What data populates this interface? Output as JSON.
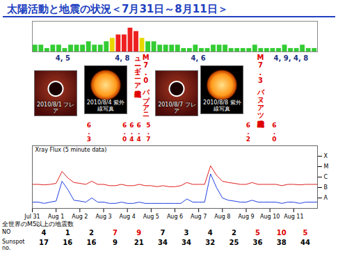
{
  "title": "太陽活動と地震の状況＜7月31日～8月11日＞",
  "chart_data": [
    {
      "type": "bar",
      "x": [
        0.125,
        0.375,
        0.625,
        0.875,
        1.125,
        1.375,
        1.625,
        1.875,
        2.125,
        2.375,
        2.625,
        2.875,
        3.125,
        3.375,
        3.625,
        3.875,
        4.125,
        4.375,
        4.625,
        4.875,
        5.125,
        5.375,
        5.625,
        5.875,
        6.125,
        6.375,
        6.625,
        6.875,
        7.125,
        7.375,
        7.625,
        7.875,
        8.125,
        8.375,
        8.625,
        8.875,
        9.125,
        9.375,
        9.625,
        9.875,
        10.125,
        10.375,
        10.625,
        10.875,
        11.125,
        11.375,
        11.625,
        11.875
      ],
      "values": [
        2,
        2,
        1,
        2,
        2,
        1,
        2,
        2,
        2,
        3,
        2,
        2,
        3,
        4,
        5,
        5,
        7,
        6,
        4,
        3,
        3,
        2,
        2,
        2,
        2,
        1,
        1,
        2,
        1,
        1,
        2,
        2,
        2,
        1,
        1,
        1,
        1,
        2,
        1,
        1,
        1,
        1,
        2,
        1,
        1,
        2,
        1,
        1
      ],
      "colors": [
        "#33cc33",
        "#33cc33",
        "#33cc33",
        "#33cc33",
        "#33cc33",
        "#33cc33",
        "#33cc33",
        "#33cc33",
        "#33cc33",
        "#33cc33",
        "#33cc33",
        "#33cc33",
        "#33cc33",
        "#e8d800",
        "#ee2020",
        "#ee2020",
        "#ee2020",
        "#ee2020",
        "#e8d800",
        "#33cc33",
        "#33cc33",
        "#33cc33",
        "#33cc33",
        "#33cc33",
        "#33cc33",
        "#33cc33",
        "#33cc33",
        "#33cc33",
        "#33cc33",
        "#33cc33",
        "#33cc33",
        "#33cc33",
        "#33cc33",
        "#33cc33",
        "#33cc33",
        "#33cc33",
        "#33cc33",
        "#33cc33",
        "#33cc33",
        "#33cc33",
        "#33cc33",
        "#33cc33",
        "#33cc33",
        "#33cc33",
        "#33cc33",
        "#33cc33",
        "#33cc33",
        "#33cc33"
      ],
      "xlim": [
        0,
        12
      ],
      "ylim": [
        0,
        9
      ],
      "tick_labels": false
    },
    {
      "type": "line",
      "title": "Xray Flux (5 minute data)",
      "x": [
        0,
        0.25,
        0.5,
        0.75,
        1,
        1.25,
        1.5,
        1.75,
        2,
        2.25,
        2.5,
        2.75,
        3,
        3.25,
        3.5,
        3.75,
        4,
        4.25,
        4.5,
        4.75,
        5,
        5.25,
        5.5,
        5.75,
        6,
        6.25,
        6.5,
        6.75,
        7,
        7.25,
        7.5,
        7.75,
        8,
        8.25,
        8.5,
        8.75,
        9,
        9.25,
        9.5,
        9.75,
        10,
        10.25,
        10.5,
        10.75,
        11,
        11.25,
        11.5,
        11.75,
        12
      ],
      "series": [
        {
          "color": "#e02020",
          "values": [
            2e-07,
            2e-07,
            1.8e-07,
            2e-07,
            2.5e-07,
            3.5e-06,
            8e-07,
            3e-07,
            2.5e-07,
            2e-07,
            4e-07,
            2e-07,
            2e-07,
            1.5e-07,
            1.5e-07,
            2e-07,
            1.5e-07,
            1.5e-07,
            2e-07,
            1.5e-07,
            1.5e-07,
            1.2e-07,
            1.5e-07,
            1.2e-07,
            1.2e-07,
            1.5e-07,
            3e-07,
            2e-07,
            2e-07,
            2e-07,
            1.2e-05,
            1.5e-06,
            4e-07,
            3e-07,
            2.5e-07,
            2e-07,
            2e-07,
            3e-07,
            2e-07,
            2e-07,
            2e-07,
            2e-07,
            1.5e-07,
            2e-07,
            2e-07,
            1.8e-07,
            2e-07,
            2e-07,
            2e-07
          ]
        },
        {
          "color": "#2040e0",
          "values": [
            4e-09,
            4e-09,
            3e-09,
            4e-09,
            5e-09,
            4e-07,
            6e-08,
            6e-09,
            5e-09,
            4e-09,
            1e-08,
            4e-09,
            4e-09,
            3e-09,
            3e-09,
            4e-09,
            3e-09,
            3e-09,
            4e-09,
            3e-09,
            3e-09,
            3e-09,
            3e-09,
            3e-09,
            3e-09,
            3e-09,
            8e-09,
            4e-09,
            4e-09,
            4e-09,
            2e-06,
            1e-07,
            1e-08,
            6e-09,
            5e-09,
            4e-09,
            4e-09,
            6e-09,
            4e-09,
            4e-09,
            4e-09,
            4e-09,
            3e-09,
            4e-09,
            4e-09,
            3e-09,
            4e-09,
            4e-09,
            4e-09
          ]
        }
      ],
      "xlim": [
        0,
        12
      ],
      "xticks": [
        {
          "value": 0,
          "label": "Jul 31"
        },
        {
          "value": 1,
          "label": "Aug 1"
        },
        {
          "value": 2,
          "label": "Aug 2"
        },
        {
          "value": 3,
          "label": "Aug 3"
        },
        {
          "value": 4,
          "label": "Aug 4"
        },
        {
          "value": 5,
          "label": "Aug 5"
        },
        {
          "value": 6,
          "label": "Aug 6"
        },
        {
          "value": 7,
          "label": "Aug 7"
        },
        {
          "value": 8,
          "label": "Aug 8"
        },
        {
          "value": 9,
          "label": "Aug 9"
        },
        {
          "value": 10,
          "label": "Aug 10"
        },
        {
          "value": 11,
          "label": "Aug 11"
        }
      ],
      "ylim": [
        1e-09,
        0.001
      ],
      "yticks": [
        {
          "value": 1e-08,
          "label": "A"
        },
        {
          "value": 1e-07,
          "label": "B"
        },
        {
          "value": 1e-06,
          "label": "C"
        },
        {
          "value": 1e-05,
          "label": "M"
        },
        {
          "value": 0.0001,
          "label": "X"
        }
      ],
      "log": "y"
    }
  ],
  "annotations": {
    "kp_peaks": [
      {
        "x": 1.3,
        "text": "4, 5"
      },
      {
        "x": 3.8,
        "text": "4, 8"
      },
      {
        "x": 7.0,
        "text": "4, 6"
      },
      {
        "x": 10.9,
        "text": "4, 9, 4, 8"
      }
    ],
    "earthquakes": [
      {
        "x": 4.6,
        "text": "M7.0パプアニューギニア地震発生"
      },
      {
        "x": 9.6,
        "text": "M7.3バヌアツ諸島地震発生"
      }
    ],
    "magnitudes": [
      {
        "x": 2.4,
        "text": "6.3"
      },
      {
        "x": 3.9,
        "text": "6.0"
      },
      {
        "x": 4.2,
        "text": "6.4"
      },
      {
        "x": 4.5,
        "text": "6.4"
      },
      {
        "x": 4.9,
        "text": "5.7"
      },
      {
        "x": 9.1,
        "text": "6.2"
      },
      {
        "x": 10.2,
        "text": "6.0"
      }
    ],
    "flare_images": [
      {
        "x": 1.0,
        "caption": "2010/8/1 フレア"
      },
      {
        "x": 6.1,
        "caption": "2010/8/7 フレア"
      }
    ],
    "uv_images": [
      {
        "x": 3.1,
        "caption": "2010/8/4 紫外線写真"
      },
      {
        "x": 8.0,
        "caption": "2010/8/8 紫外線写真"
      }
    ]
  },
  "table": {
    "title": "全世界のM5以上の地震数",
    "rows": [
      {
        "label": "NO",
        "values": [
          4,
          1,
          2,
          7,
          9,
          7,
          3,
          4,
          2,
          5,
          10,
          5
        ],
        "colors": [
          "#000000",
          "#000000",
          "#000000",
          "#e00000",
          "#e00000",
          "#000000",
          "#000000",
          "#000000",
          "#000000",
          "#e00000",
          "#e00000",
          "#e00000"
        ]
      },
      {
        "label": "Sunspot no.",
        "values": [
          17,
          16,
          16,
          9,
          21,
          34,
          34,
          32,
          25,
          36,
          38,
          44
        ]
      }
    ]
  }
}
